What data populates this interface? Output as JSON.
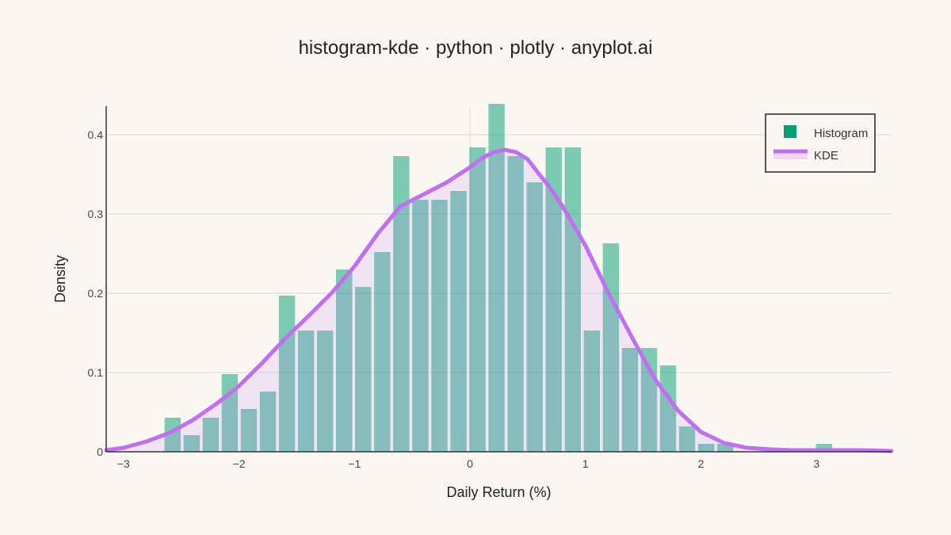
{
  "chart_data": {
    "type": "bar",
    "title": "histogram-kde · python · plotly · anyplot.ai",
    "xlabel": "Daily Return (%)",
    "ylabel": "Density",
    "xlim": [
      -3.15,
      3.65
    ],
    "ylim": [
      0,
      0.465
    ],
    "x_ticks": [
      -3,
      -2,
      -1,
      0,
      1,
      2,
      3
    ],
    "x_tick_labels": [
      "−3",
      "−2",
      "−1",
      "0",
      "1",
      "2",
      "3"
    ],
    "y_ticks": [
      0,
      0.1,
      0.2,
      0.3,
      0.4
    ],
    "y_tick_labels": [
      "0",
      "0.1",
      "0.2",
      "0.3",
      "0.4"
    ],
    "grid": true,
    "legend_position": "top-right",
    "colors": {
      "histogram": "#009e73",
      "kde": "#bf6ff0",
      "kde_fill": "#efd8f5",
      "background": "#faf7f2",
      "grid": "#d9d9d9"
    },
    "series": [
      {
        "name": "Histogram",
        "kind": "histogram",
        "bin_width": 0.165,
        "bin_centers": [
          -2.575,
          -2.41,
          -2.245,
          -2.08,
          -1.915,
          -1.75,
          -1.585,
          -1.42,
          -1.255,
          -1.09,
          -0.925,
          -0.76,
          -0.595,
          -0.43,
          -0.265,
          -0.1,
          0.065,
          0.23,
          0.395,
          0.56,
          0.725,
          0.89,
          1.055,
          1.22,
          1.385,
          1.55,
          1.715,
          1.88,
          2.045,
          2.21,
          3.065
        ],
        "values": [
          0.043,
          0.021,
          0.043,
          0.098,
          0.054,
          0.076,
          0.197,
          0.153,
          0.153,
          0.23,
          0.208,
          0.252,
          0.373,
          0.318,
          0.318,
          0.329,
          0.384,
          0.439,
          0.373,
          0.34,
          0.384,
          0.384,
          0.153,
          0.263,
          0.131,
          0.131,
          0.109,
          0.032,
          0.01,
          0.01,
          0.01
        ]
      },
      {
        "name": "KDE",
        "kind": "line",
        "x": [
          -3.15,
          -3.0,
          -2.8,
          -2.6,
          -2.4,
          -2.2,
          -2.0,
          -1.8,
          -1.6,
          -1.4,
          -1.2,
          -1.0,
          -0.8,
          -0.6,
          -0.4,
          -0.2,
          0.0,
          0.1,
          0.2,
          0.3,
          0.4,
          0.5,
          0.6,
          0.7,
          0.8,
          1.0,
          1.2,
          1.4,
          1.6,
          1.8,
          2.0,
          2.2,
          2.4,
          2.6,
          2.8,
          3.0,
          3.2,
          3.4,
          3.65
        ],
        "y": [
          0.002,
          0.005,
          0.013,
          0.024,
          0.04,
          0.06,
          0.083,
          0.112,
          0.143,
          0.171,
          0.2,
          0.234,
          0.275,
          0.31,
          0.325,
          0.34,
          0.359,
          0.37,
          0.378,
          0.381,
          0.378,
          0.369,
          0.35,
          0.332,
          0.31,
          0.26,
          0.2,
          0.145,
          0.092,
          0.052,
          0.025,
          0.011,
          0.005,
          0.003,
          0.002,
          0.002,
          0.002,
          0.002,
          0.001
        ]
      }
    ]
  }
}
